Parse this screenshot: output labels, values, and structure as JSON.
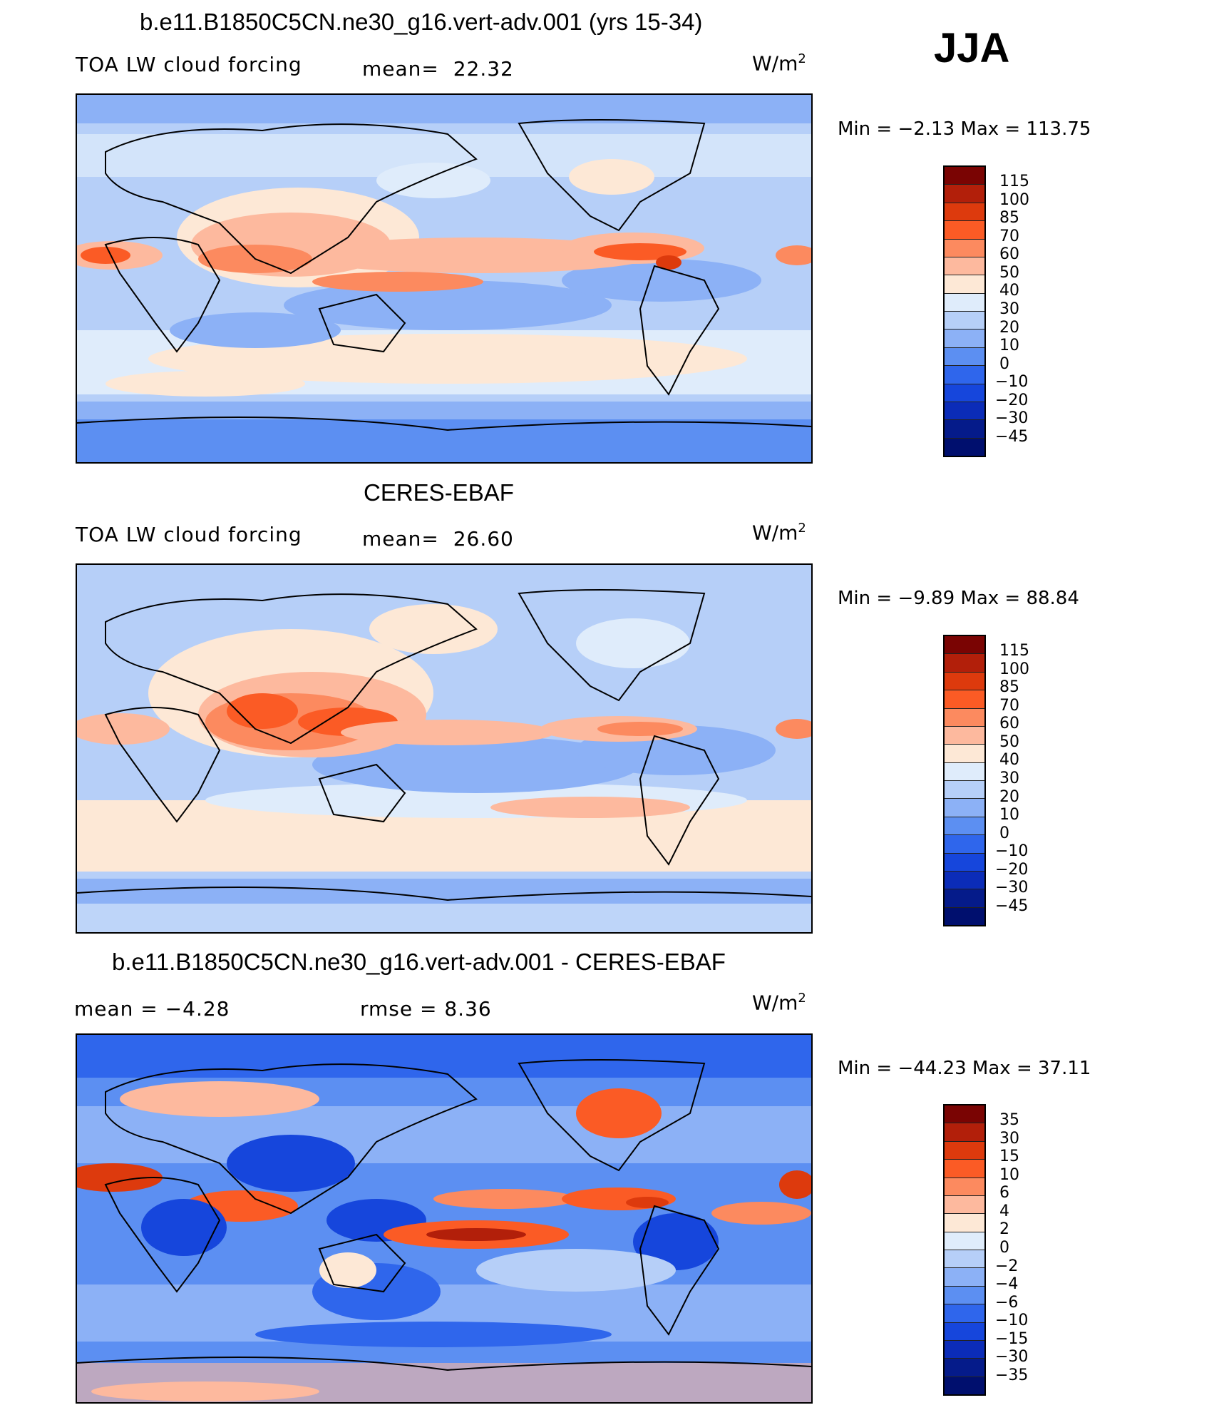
{
  "season": "JJA",
  "colors": {
    "ramp_pos": [
      "#7a0403",
      "#b21f0a",
      "#dd3a0d",
      "#fb5b25",
      "#fc8a5f",
      "#fdb99e",
      "#fde8d6"
    ],
    "ramp_neg": [
      "#dfecfb",
      "#b6cff8",
      "#8cb1f6",
      "#5c8ff2",
      "#2f66ec",
      "#1646dc",
      "#0b2cb8",
      "#051b8a",
      "#000f6e"
    ],
    "land_outline": "#000000"
  },
  "panel1": {
    "title": "b.e11.B1850C5CN.ne30_g16.vert-adv.001 (yrs 15-34)",
    "subtitle_left": "TOA LW cloud forcing",
    "mean_label": "mean=",
    "mean_value": "22.32",
    "units": "W/m",
    "units_exp": "2",
    "min_max": "Min =   −2.13 Max = 113.75",
    "colorbar_labels": [
      "115",
      "100",
      "85",
      "70",
      "60",
      "50",
      "40",
      "30",
      "20",
      "10",
      "0",
      "−10",
      "−20",
      "−30",
      "−45"
    ]
  },
  "panel2": {
    "title": "CERES-EBAF",
    "subtitle_left": "TOA LW cloud forcing",
    "mean_label": "mean=",
    "mean_value": "26.60",
    "units": "W/m",
    "units_exp": "2",
    "min_max": "Min =   −9.89 Max =   88.84",
    "colorbar_labels": [
      "115",
      "100",
      "85",
      "70",
      "60",
      "50",
      "40",
      "30",
      "20",
      "10",
      "0",
      "−10",
      "−20",
      "−30",
      "−45"
    ]
  },
  "panel3": {
    "title": "b.e11.B1850C5CN.ne30_g16.vert-adv.001 - CERES-EBAF",
    "mean_text": "mean =   −4.28",
    "rmse_text": "rmse =    8.36",
    "units": "W/m",
    "units_exp": "2",
    "min_max": "Min = −44.23 Max =   37.11",
    "colorbar_labels": [
      "35",
      "30",
      "15",
      "10",
      "6",
      "4",
      "2",
      "0",
      "−2",
      "−4",
      "−6",
      "−10",
      "−15",
      "−30",
      "−35"
    ]
  }
}
